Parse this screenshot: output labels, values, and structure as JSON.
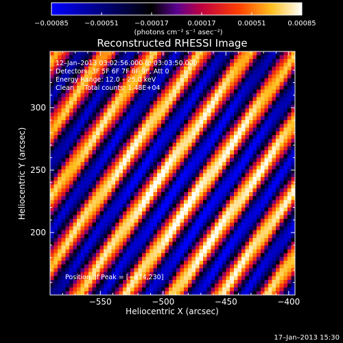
{
  "chart_data": {
    "type": "heatmap",
    "title": "Reconstructed RHESSI Image",
    "xlabel": "Heliocentric X (arcsec)",
    "ylabel": "Heliocentric Y (arcsec)",
    "xlim": [
      -590,
      -395
    ],
    "ylim": [
      150,
      345
    ],
    "xticks": [
      -550,
      -500,
      -450,
      -400
    ],
    "yticks": [
      200,
      250,
      300
    ],
    "xtick_labels": [
      "−550",
      "−500",
      "−450",
      "−400"
    ],
    "ytick_labels": [
      "200",
      "250",
      "300"
    ],
    "colorbar": {
      "range": [
        -0.00085,
        0.00085
      ],
      "ticks": [
        -0.00085,
        -0.00051,
        -0.00017,
        0.00017,
        0.00051,
        0.00085
      ],
      "tick_labels": [
        "−0.00085",
        "−0.00051",
        "−0.00017",
        "0.00017",
        "0.00051",
        "0.00085"
      ],
      "unit_label": "(photons cm⁻² s⁻¹ asec⁻²)",
      "colors": [
        "#0000ff",
        "#000000",
        "#4a0080",
        "#a000a0",
        "#e00000",
        "#ff8000",
        "#ffff60",
        "#ffffff"
      ]
    },
    "annotations": {
      "time_range": "12–Jan–2013 03:02:56.000 to 03:03:50.000",
      "detectors": "Detectors: 3F 5F 6F 7F 8F 9F, Att 0",
      "energy_range": "Energy Range: 12.0 – 25.0 keV",
      "method": "Clean     Total counts: 1.48E+04",
      "peak_position": "Position of Peak = [−474,230]"
    },
    "peak": {
      "x": -474,
      "y": 230
    },
    "stripe_angle_deg": 55,
    "stripe_period_arcsec": 31
  },
  "footer": {
    "timestamp": "17–Jan–2013 15:30"
  }
}
